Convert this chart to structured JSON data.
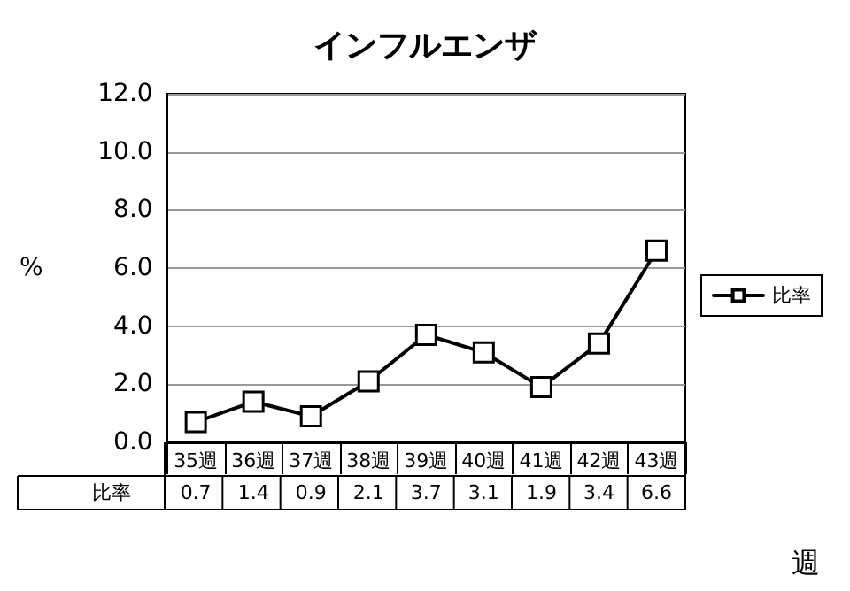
{
  "chart_data": {
    "type": "line",
    "title": "インフルエンザ",
    "ylabel": "%",
    "xlabel": "週",
    "categories": [
      "35週",
      "36週",
      "37週",
      "38週",
      "39週",
      "40週",
      "41週",
      "42週",
      "43週"
    ],
    "series": [
      {
        "name": "比率",
        "color": "#000000",
        "values": [
          0.7,
          1.4,
          0.9,
          2.1,
          3.7,
          3.1,
          1.9,
          3.4,
          6.6
        ]
      }
    ],
    "ylim": [
      0,
      12
    ],
    "yticks": [
      {
        "value": 0,
        "label": "0.0"
      },
      {
        "value": 2,
        "label": "2.0"
      },
      {
        "value": 4,
        "label": "4.0"
      },
      {
        "value": 6,
        "label": "6.0"
      },
      {
        "value": 8,
        "label": "8.0"
      },
      {
        "value": 10,
        "label": "10.0"
      },
      {
        "value": 12,
        "label": "12.0"
      }
    ],
    "grid": "y",
    "legend": "right",
    "marker": "square",
    "line_style": "solid",
    "data_labels": true
  }
}
